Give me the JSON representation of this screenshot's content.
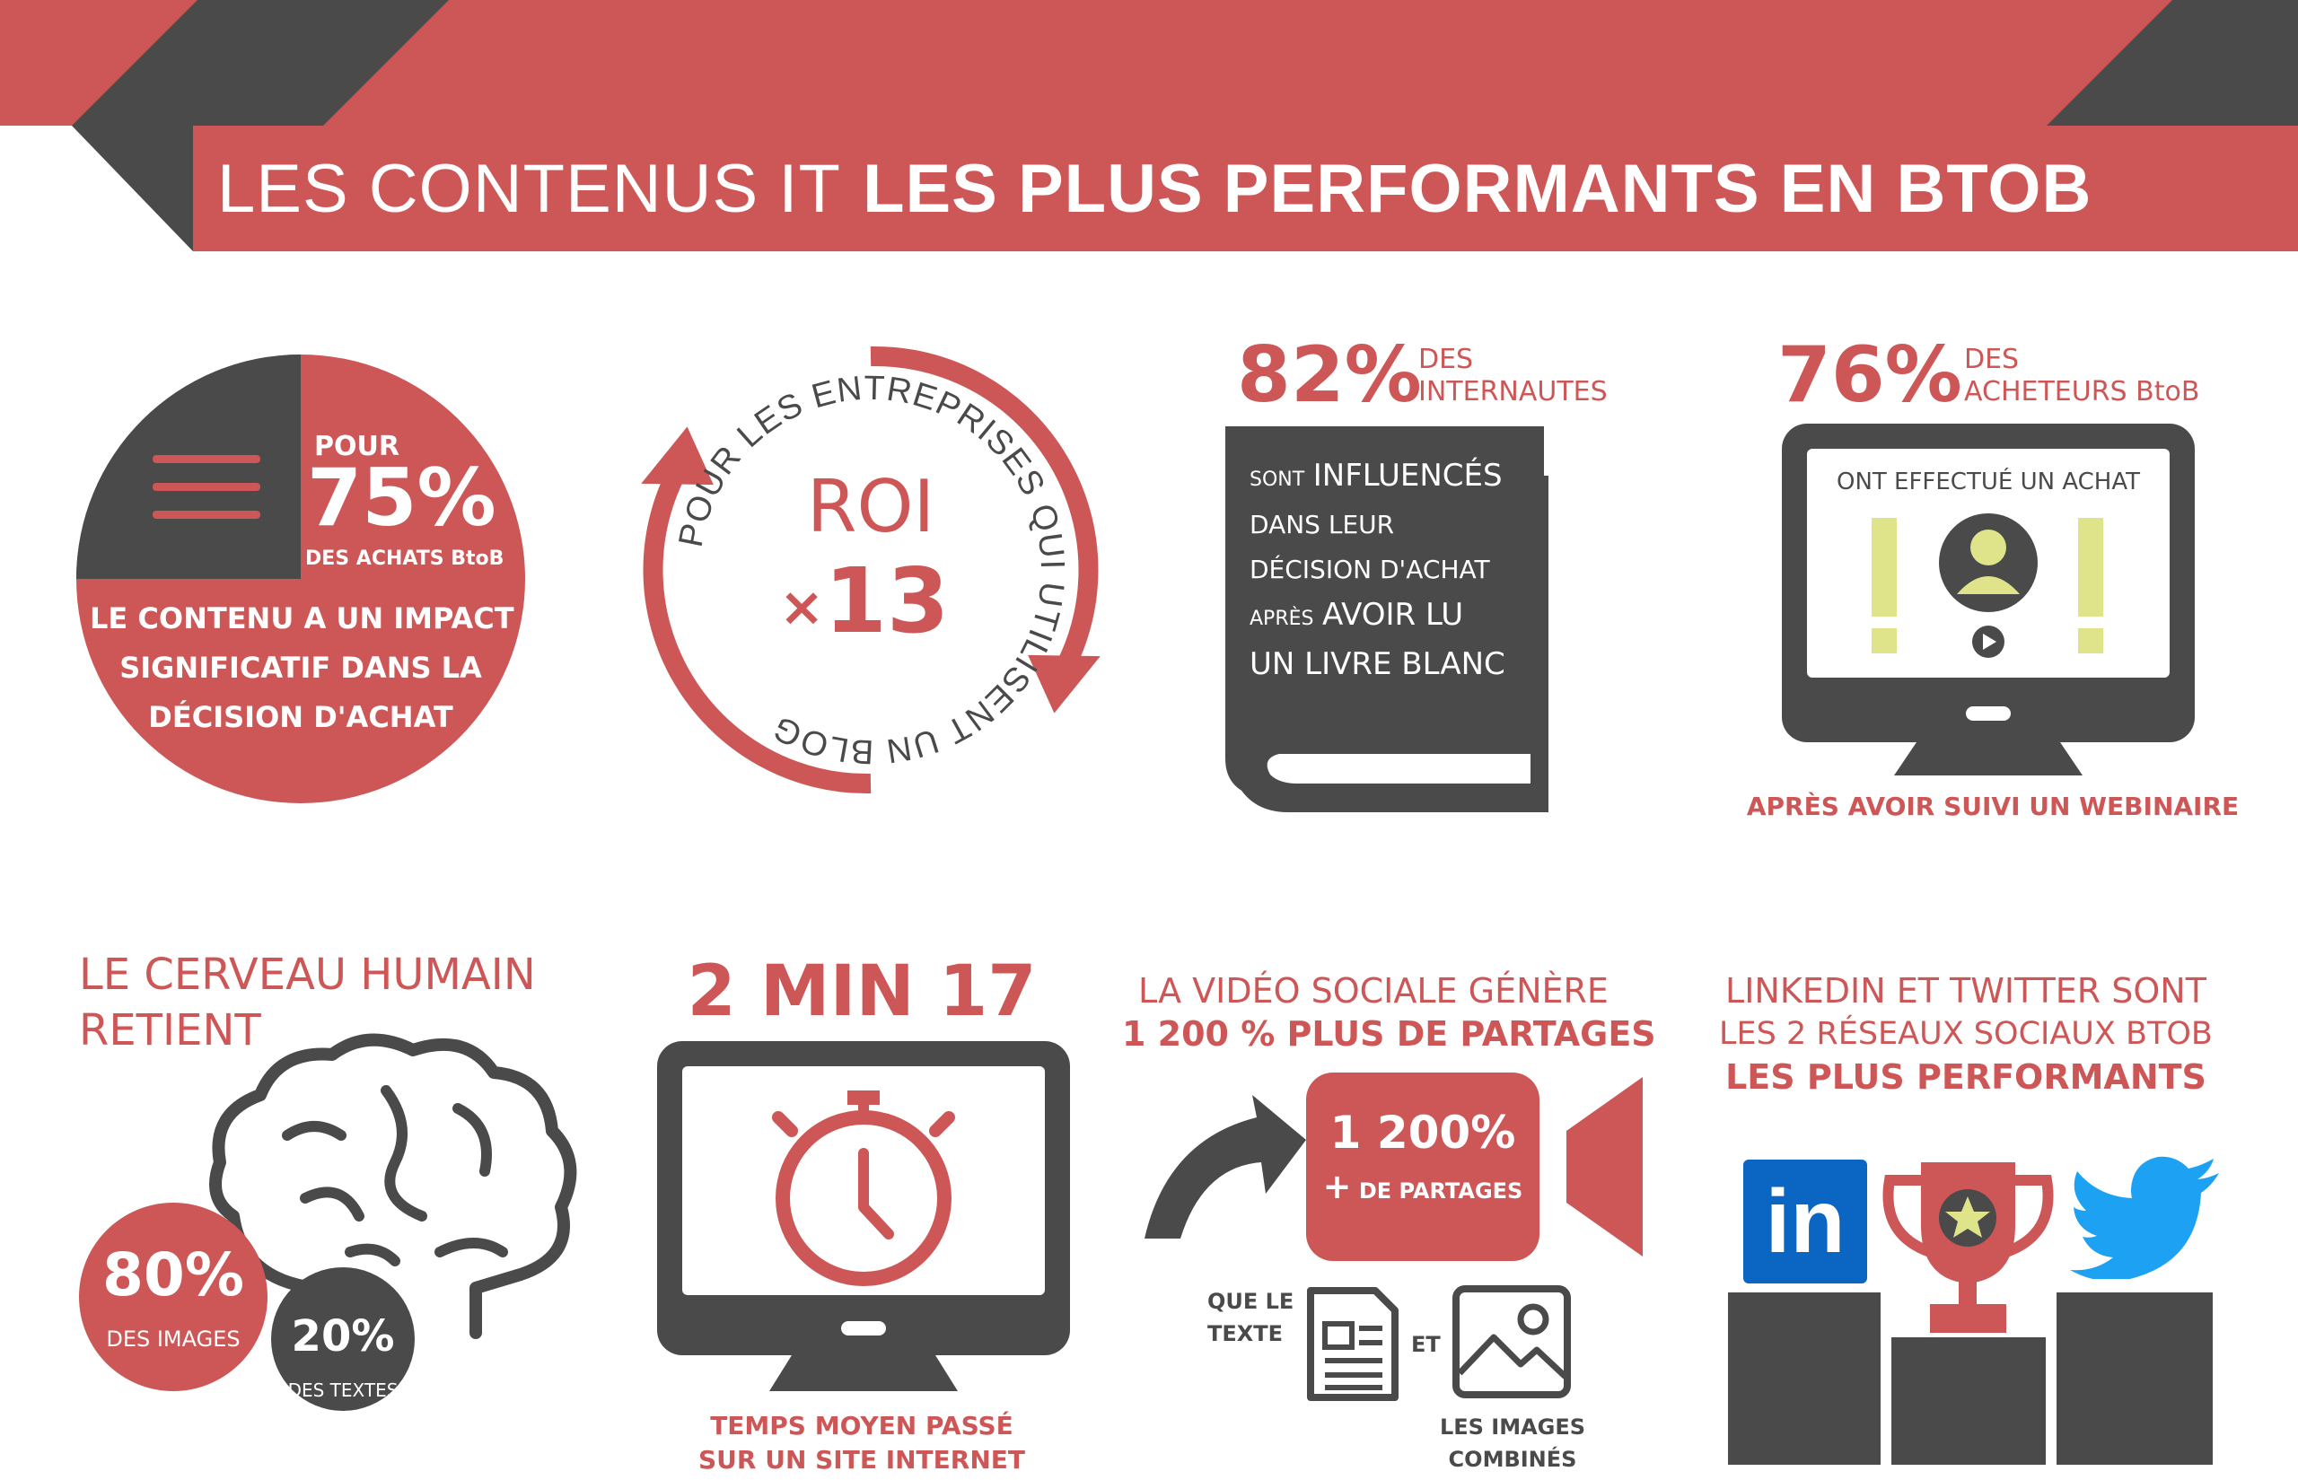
{
  "colors": {
    "red": "#cd5757",
    "dark": "#4a4a4a",
    "yellow": "#dfe38a",
    "linkedin": "#0a66c2",
    "twitter": "#1da1f2"
  },
  "header": {
    "title_light": "LES CONTENUS IT",
    "title_bold": "LES PLUS PERFORMANTS EN BTOB"
  },
  "impact": {
    "pour": "POUR",
    "percent": "75%",
    "achats": "DES ACHATS BtoB",
    "line1": "LE CONTENU A UN IMPACT",
    "line2": "SIGNIFICATIF DANS LA",
    "line3": "DÉCISION D'ACHAT",
    "icon": "menu-lines-icon"
  },
  "roi": {
    "label": "ROI",
    "times": "×",
    "value": "13",
    "circle_text": "POUR LES ENTREPRISES QUI UTILISENT UN BLOG"
  },
  "livre": {
    "percent": "82%",
    "des": "DES",
    "internautes": "INTERNAUTES",
    "l1_small": "SONT",
    "l1_big": "INFLUENCÉS",
    "l2": "DANS LEUR",
    "l3": "DÉCISION D'ACHAT",
    "l4_small": "APRÈS",
    "l4_big": "AVOIR LU",
    "l5": "UN LIVRE BLANC",
    "icon": "book-icon"
  },
  "webinaire": {
    "percent": "76%",
    "des": "DES",
    "acheteurs": "ACHETEURS BtoB",
    "screen_text": "ONT EFFECTUÉ UN ACHAT",
    "after": "APRÈS AVOIR SUIVI UN WEBINAIRE",
    "icon": "monitor-icon"
  },
  "cerveau": {
    "title1": "LE CERVEAU HUMAIN",
    "title2": "RETIENT",
    "images_pct": "80%",
    "images_label": "DES IMAGES",
    "textes_pct": "20%",
    "textes_label": "DES TEXTES",
    "icon": "brain-icon"
  },
  "temps": {
    "value": "2 MIN 17",
    "caption1": "TEMPS MOYEN PASSÉ",
    "caption2": "SUR UN SITE INTERNET",
    "icon": "stopwatch-icon"
  },
  "video": {
    "title1": "LA VIDÉO SOCIALE GÉNÈRE",
    "title2": "1 200 % PLUS DE PARTAGES",
    "cam_pct": "1 200%",
    "cam_plus": "+",
    "cam_label": "DE PARTAGES",
    "que1": "QUE LE",
    "que2": "TEXTE",
    "et": "ET",
    "img1": "LES IMAGES",
    "img2": "COMBINÉS",
    "icon": "video-camera-icon"
  },
  "reseaux": {
    "title1": "LINKEDIN ET TWITTER SONT",
    "title2": "LES 2 RÉSEAUX SOCIAUX BTOB",
    "title3": "LES PLUS PERFORMANTS",
    "linkedin": "in",
    "icon": "trophy-icon"
  }
}
